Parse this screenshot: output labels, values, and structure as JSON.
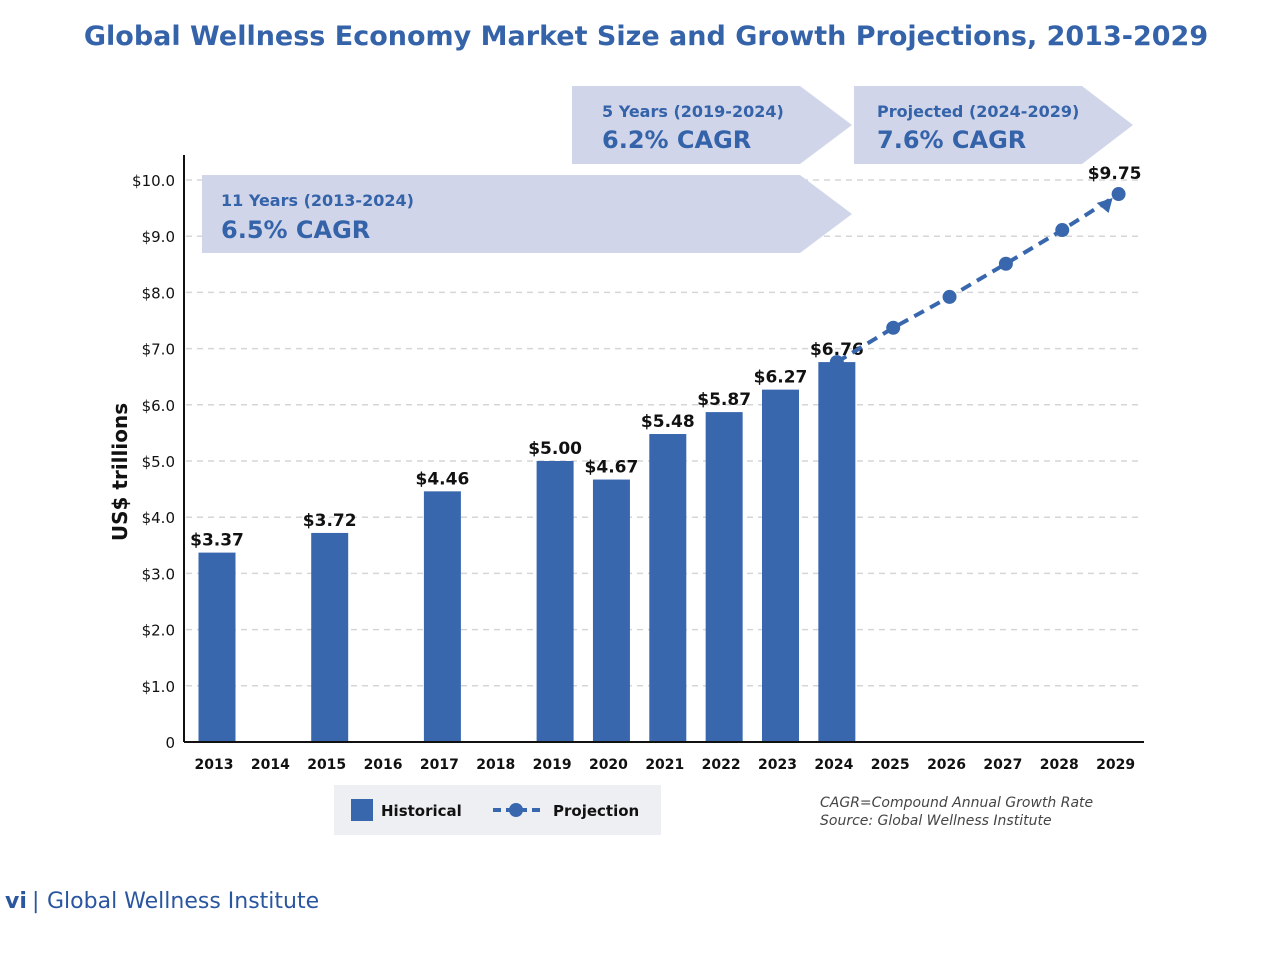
{
  "chart_data": {
    "type": "bar",
    "title": "Global Wellness Economy Market Size and Growth Projections, 2013-2029",
    "ylabel": "US$ trillions",
    "xlabel": "",
    "ylim": [
      0,
      10
    ],
    "yticks": [
      "0",
      "$1.0",
      "$2.0",
      "$3.0",
      "$4.0",
      "$5.0",
      "$6.0",
      "$7.0",
      "$8.0",
      "$9.0",
      "$10.0"
    ],
    "categories": [
      "2013",
      "2014",
      "2015",
      "2016",
      "2017",
      "2018",
      "2019",
      "2020",
      "2021",
      "2022",
      "2023",
      "2024",
      "2025",
      "2026",
      "2027",
      "2028",
      "2029"
    ],
    "grid": true,
    "series": [
      {
        "name": "Historical",
        "type": "bar",
        "points": [
          {
            "x": "2013",
            "y": 3.37,
            "label": "$3.37"
          },
          {
            "x": "2015",
            "y": 3.72,
            "label": "$3.72"
          },
          {
            "x": "2017",
            "y": 4.46,
            "label": "$4.46"
          },
          {
            "x": "2019",
            "y": 5.0,
            "label": "$5.00"
          },
          {
            "x": "2020",
            "y": 4.67,
            "label": "$4.67"
          },
          {
            "x": "2021",
            "y": 5.48,
            "label": "$5.48"
          },
          {
            "x": "2022",
            "y": 5.87,
            "label": "$5.87"
          },
          {
            "x": "2023",
            "y": 6.27,
            "label": "$6.27"
          },
          {
            "x": "2024",
            "y": 6.76,
            "label": "$6.76"
          }
        ]
      },
      {
        "name": "Projection",
        "type": "line",
        "points": [
          {
            "x": "2024",
            "y": 6.76
          },
          {
            "x": "2025",
            "y": 7.37
          },
          {
            "x": "2026",
            "y": 7.92
          },
          {
            "x": "2027",
            "y": 8.51
          },
          {
            "x": "2028",
            "y": 9.11
          },
          {
            "x": "2029",
            "y": 9.75,
            "label": "$9.75"
          }
        ]
      }
    ],
    "legend": {
      "position": "bottom",
      "items": [
        "Historical",
        "Projection"
      ]
    },
    "annotations": {
      "cagr_11": {
        "period": "11 Years (2013-2024)",
        "value": "6.5% CAGR"
      },
      "cagr_5": {
        "period": "5 Years (2019-2024)",
        "value": "6.2% CAGR"
      },
      "cagr_proj": {
        "period": "Projected (2024-2029)",
        "value": "7.6% CAGR"
      }
    },
    "notes": [
      "CAGR=Compound Annual Growth Rate",
      "Source: Global Wellness Institute"
    ]
  },
  "footer": {
    "page": "vi",
    "separator": "|",
    "org": "Global Wellness Institute"
  },
  "colors": {
    "bar": "#3867ae",
    "title": "#3563a9",
    "banner": "#d0d5e9",
    "legend_bg": "#eeeff2"
  }
}
